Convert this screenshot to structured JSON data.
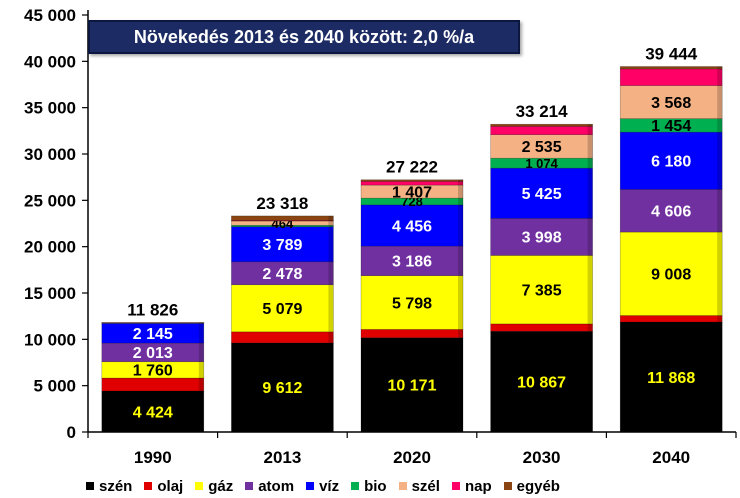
{
  "chart_data": {
    "type": "bar",
    "stacked": true,
    "title": "Növekedés 2013 és 2040 között: 2,0 %/a",
    "categories": [
      "1990",
      "2013",
      "2020",
      "2030",
      "2040"
    ],
    "ylim": [
      0,
      45000
    ],
    "yticks": [
      0,
      5000,
      10000,
      15000,
      20000,
      25000,
      30000,
      35000,
      40000,
      45000
    ],
    "ytick_labels": [
      "0",
      "5 000",
      "10 000",
      "15 000",
      "20 000",
      "25 000",
      "30 000",
      "35 000",
      "40 000",
      "45 000"
    ],
    "totals": [
      11826,
      23318,
      27222,
      33214,
      39444
    ],
    "total_labels": [
      "11 826",
      "23 318",
      "27 222",
      "33 214",
      "39 444"
    ],
    "legend_position": "bottom",
    "grid": false,
    "series": [
      {
        "name": "szén",
        "color": "#000000",
        "label_color": "#ffff00",
        "values": [
          4424,
          9612,
          10171,
          10867,
          11868
        ],
        "labels": [
          "4 424",
          "9 612",
          "10 171",
          "10 867",
          "11 868"
        ]
      },
      {
        "name": "olaj",
        "color": "#e00000",
        "label_color": "#ffffff",
        "values": [
          1400,
          1200,
          900,
          800,
          700
        ],
        "labels": [
          "",
          "",
          "",
          "",
          ""
        ]
      },
      {
        "name": "gáz",
        "color": "#ffff00",
        "label_color": "#000000",
        "values": [
          1760,
          5079,
          5798,
          7385,
          9008
        ],
        "labels": [
          "1 760",
          "5 079",
          "5 798",
          "7 385",
          "9 008"
        ]
      },
      {
        "name": "atom",
        "color": "#7030a0",
        "label_color": "#ffffff",
        "values": [
          2013,
          2478,
          3186,
          3998,
          4606
        ],
        "labels": [
          "2 013",
          "2 478",
          "3 186",
          "3 998",
          "4 606"
        ]
      },
      {
        "name": "víz",
        "color": "#0000ff",
        "label_color": "#ffffff",
        "values": [
          2145,
          3789,
          4456,
          5425,
          6180
        ],
        "labels": [
          "2 145",
          "3 789",
          "4 456",
          "5 425",
          "6 180"
        ]
      },
      {
        "name": "bio",
        "color": "#00b050",
        "label_color": "#000000",
        "values": [
          30,
          150,
          728,
          1074,
          1454
        ],
        "labels": [
          "",
          "",
          "728",
          "1 074",
          "1 454"
        ]
      },
      {
        "name": "szél",
        "color": "#f4b183",
        "label_color": "#000000",
        "values": [
          10,
          464,
          1407,
          2535,
          3568
        ],
        "labels": [
          "",
          "464",
          "1 407",
          "2 535",
          "3 568"
        ]
      },
      {
        "name": "nap",
        "color": "#ff0066",
        "label_color": "#000000",
        "values": [
          0,
          50,
          400,
          900,
          1800
        ],
        "labels": [
          "",
          "",
          "",
          "",
          ""
        ]
      },
      {
        "name": "egyéb",
        "color": "#8b4513",
        "label_color": "#000000",
        "values": [
          44,
          496,
          176,
          230,
          260
        ],
        "labels": [
          "",
          "",
          "",
          "",
          ""
        ]
      }
    ]
  }
}
